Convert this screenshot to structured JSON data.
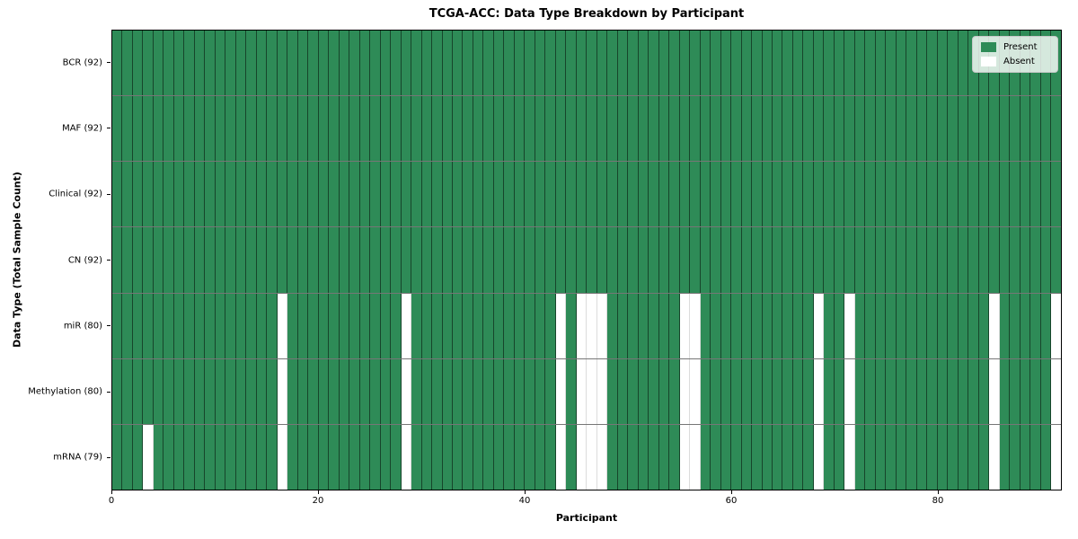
{
  "chart_data": {
    "type": "heatmap",
    "title": "TCGA-ACC: Data Type Breakdown by Participant",
    "xlabel": "Participant",
    "ylabel": "Data Type (Total Sample Count)",
    "n_participants": 92,
    "x_ticks": [
      0,
      20,
      40,
      60,
      80
    ],
    "rows": [
      {
        "label": "BCR (92)",
        "present_count": 92,
        "absent_participants": []
      },
      {
        "label": "MAF (92)",
        "present_count": 92,
        "absent_participants": []
      },
      {
        "label": "Clinical (92)",
        "present_count": 92,
        "absent_participants": []
      },
      {
        "label": "CN (92)",
        "present_count": 92,
        "absent_participants": []
      },
      {
        "label": "miR (80)",
        "present_count": 80,
        "absent_participants": [
          16,
          28,
          43,
          45,
          46,
          47,
          55,
          56,
          68,
          71,
          85,
          91
        ]
      },
      {
        "label": "Methylation (80)",
        "present_count": 80,
        "absent_participants": [
          16,
          28,
          43,
          45,
          46,
          47,
          55,
          56,
          68,
          71,
          85,
          91
        ]
      },
      {
        "label": "mRNA (79)",
        "present_count": 79,
        "absent_participants": [
          3,
          16,
          28,
          43,
          45,
          46,
          47,
          55,
          56,
          68,
          71,
          85,
          91
        ]
      }
    ],
    "legend": [
      {
        "label": "Present",
        "color": "#2e8b57"
      },
      {
        "label": "Absent",
        "color": "#ffffff"
      }
    ],
    "colors": {
      "present": "#2e8b57",
      "absent": "#ffffff",
      "cell_edge": "rgba(0,0,0,0.5)",
      "row_separator": "#767676",
      "spine": "#000000"
    },
    "layout": {
      "legend_position": "upper right",
      "grid": "cell-edges"
    }
  }
}
